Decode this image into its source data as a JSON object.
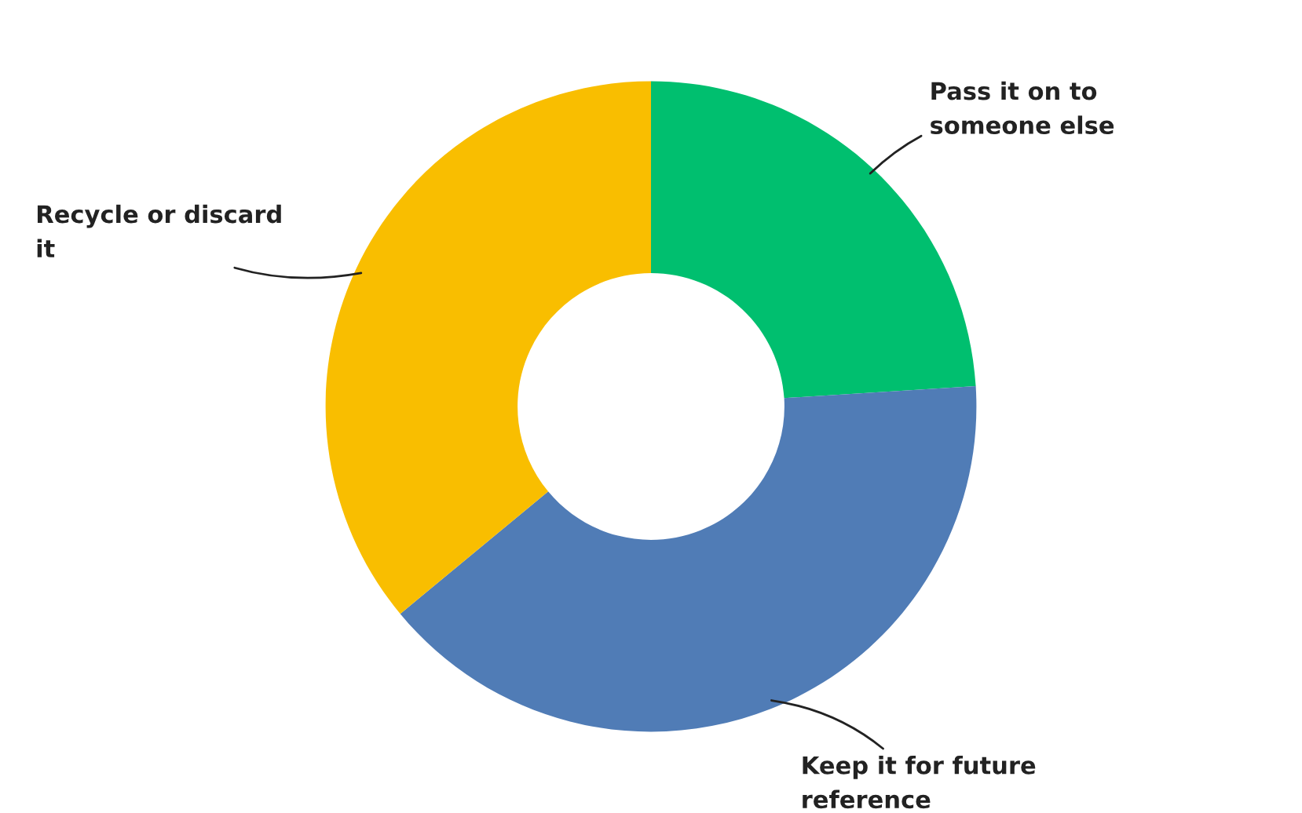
{
  "chart_data": {
    "type": "donut",
    "categories": [
      "Pass it on to\nsomeone else",
      "Keep it for future\nreference",
      "Recycle or discard\nit"
    ],
    "values": [
      24,
      40,
      36
    ],
    "colors": [
      "#00bf6f",
      "#507cb6",
      "#f9be00"
    ]
  }
}
